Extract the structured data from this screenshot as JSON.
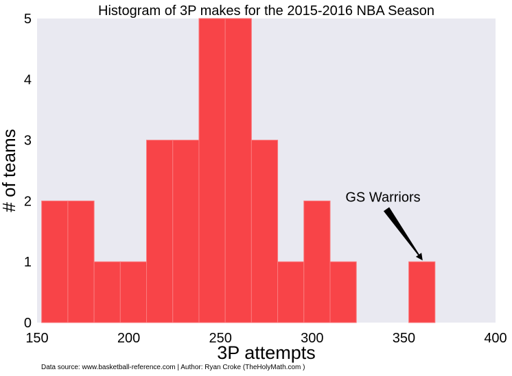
{
  "chart_data": {
    "type": "bar",
    "title": "Histogram of 3P makes for the 2015-2016 NBA Season",
    "xlabel": "3P attempts",
    "ylabel": "# of teams",
    "xlim": [
      150,
      400
    ],
    "ylim": [
      0,
      5
    ],
    "xticks": [
      "150",
      "200",
      "250",
      "300",
      "350",
      "400"
    ],
    "yticks": [
      "0",
      "1",
      "2",
      "3",
      "4",
      "5"
    ],
    "grid": false,
    "bins": [
      {
        "x0": 152.5,
        "x1": 166.8,
        "count": 2
      },
      {
        "x0": 166.8,
        "x1": 181.1,
        "count": 2
      },
      {
        "x0": 181.1,
        "x1": 195.4,
        "count": 1
      },
      {
        "x0": 195.4,
        "x1": 209.7,
        "count": 1
      },
      {
        "x0": 209.7,
        "x1": 224.0,
        "count": 3
      },
      {
        "x0": 224.0,
        "x1": 238.3,
        "count": 3
      },
      {
        "x0": 238.3,
        "x1": 252.6,
        "count": 5
      },
      {
        "x0": 252.6,
        "x1": 266.9,
        "count": 5
      },
      {
        "x0": 266.9,
        "x1": 281.2,
        "count": 3
      },
      {
        "x0": 281.2,
        "x1": 295.5,
        "count": 1
      },
      {
        "x0": 295.5,
        "x1": 309.8,
        "count": 2
      },
      {
        "x0": 309.8,
        "x1": 324.1,
        "count": 1
      },
      {
        "x0": 324.1,
        "x1": 338.4,
        "count": 0
      },
      {
        "x0": 338.4,
        "x1": 352.7,
        "count": 0
      },
      {
        "x0": 352.7,
        "x1": 367.0,
        "count": 1
      }
    ],
    "annotation": {
      "text": "GS Warriors",
      "text_at": [
        339,
        2
      ],
      "arrow_to": [
        359.5,
        1
      ]
    },
    "colors": {
      "bar": "#f84448",
      "bar_edge": "#fa7a7d",
      "plot_bg": "#e9e9f1"
    }
  },
  "footer": "Data source: www.basketball-reference.com | Author: Ryan Croke (TheHolyMath.com )"
}
